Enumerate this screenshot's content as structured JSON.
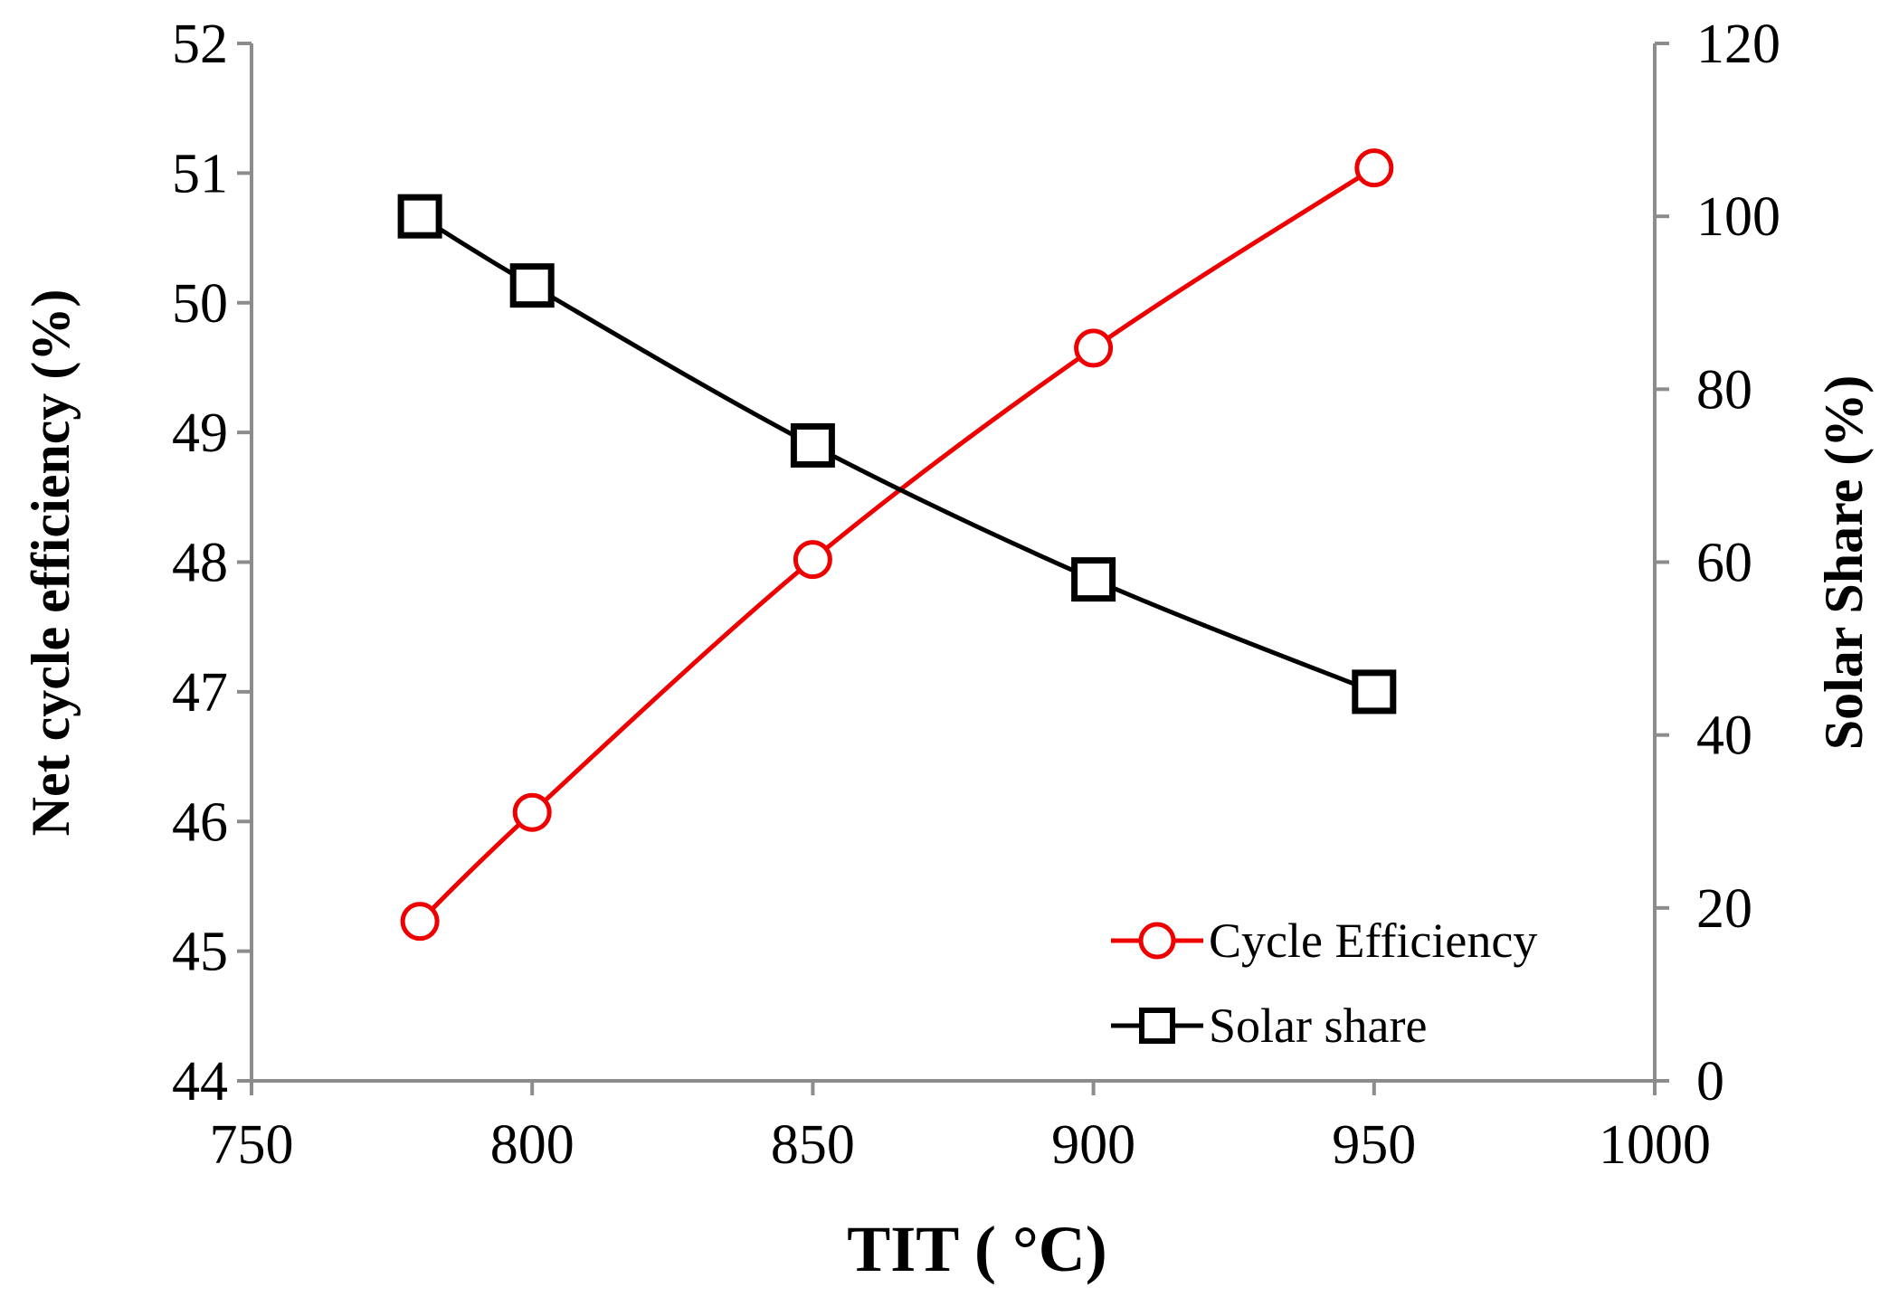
{
  "chart_data": {
    "type": "line",
    "x": [
      780,
      800,
      850,
      900,
      950
    ],
    "xlabel": "TIT ( °C)",
    "ylabel_left": "Net cycle efficiency (%)",
    "ylabel_right": "Solar Share (%)",
    "xlim": [
      750,
      1000
    ],
    "ylim_left": [
      44,
      52
    ],
    "ylim_right": [
      0,
      120
    ],
    "x_ticks": [
      "750",
      "800",
      "850",
      "900",
      "950",
      "1000"
    ],
    "y_left_ticks": [
      "44",
      "45",
      "46",
      "47",
      "48",
      "49",
      "50",
      "51",
      "52"
    ],
    "y_right_ticks": [
      "0",
      "20",
      "40",
      "60",
      "80",
      "100",
      "120"
    ],
    "grid": false,
    "legend_position": "bottom-right",
    "series": [
      {
        "name": "Cycle Efficiency",
        "axis": "left",
        "marker": "circle",
        "color": "#ee0000",
        "values": [
          45.23,
          46.07,
          48.02,
          49.65,
          51.04
        ]
      },
      {
        "name": "Solar share",
        "axis": "right",
        "marker": "square",
        "color": "#000000",
        "values": [
          100,
          92,
          73.5,
          58,
          45
        ]
      }
    ]
  }
}
